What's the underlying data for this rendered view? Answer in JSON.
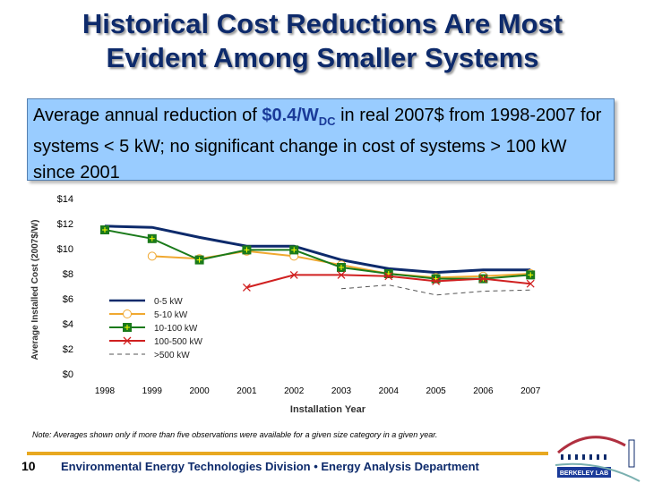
{
  "title_line1": "Historical Cost Reductions Are Most",
  "title_line2": "Evident Among Smaller Systems",
  "callout": {
    "pre": "Average annual reduction of ",
    "value": "$0.4/W",
    "sub": "DC",
    "post": " in real 2007$ from 1998-2007 for systems < 5 kW; no significant change in cost of systems > 100 kW since 2001"
  },
  "note": "Note: Averages shown only if more than five observations were available for a given size category in a given year.",
  "footer": {
    "page": "10",
    "text": "Environmental Energy Technologies Division  •  Energy Analysis Department",
    "logo_text": "BERKELEY LAB"
  },
  "chart_data": {
    "type": "line",
    "xlabel": "Installation Year",
    "ylabel": "Average Installed Cost (2007$/W)",
    "categories": [
      "1998",
      "1999",
      "2000",
      "2001",
      "2002",
      "2003",
      "2004",
      "2005",
      "2006",
      "2007"
    ],
    "ylim": [
      0,
      14
    ],
    "yticks": [
      "$0",
      "$2",
      "$4",
      "$6",
      "$8",
      "$10",
      "$12",
      "$14"
    ],
    "legend_position": "left-lower-inside",
    "grid": false,
    "series": [
      {
        "name": "0-5 kW",
        "color": "#0d2a6b",
        "marker": "none",
        "dash": false,
        "values": [
          11.8,
          11.7,
          10.9,
          10.2,
          10.2,
          9.1,
          8.4,
          8.1,
          8.3,
          8.3
        ]
      },
      {
        "name": "5-10 kW",
        "color": "#f0a830",
        "marker": "circle",
        "dash": false,
        "values": [
          null,
          9.4,
          9.2,
          9.8,
          9.4,
          8.7,
          8.0,
          7.7,
          7.8,
          8.0
        ]
      },
      {
        "name": "10-100 kW",
        "color": "#1a7a1a",
        "marker": "square",
        "dash": false,
        "values": [
          11.5,
          10.8,
          9.1,
          9.9,
          9.9,
          8.5,
          8.0,
          7.6,
          7.6,
          7.9
        ]
      },
      {
        "name": "100-500 kW",
        "color": "#d02020",
        "marker": "x",
        "dash": false,
        "values": [
          null,
          null,
          null,
          6.9,
          7.9,
          7.9,
          7.8,
          7.4,
          7.6,
          7.2
        ]
      },
      {
        "name": ">500 kW",
        "color": "#555555",
        "marker": "none",
        "dash": true,
        "values": [
          null,
          null,
          null,
          null,
          null,
          6.8,
          7.1,
          6.3,
          6.6,
          6.7
        ]
      }
    ]
  }
}
